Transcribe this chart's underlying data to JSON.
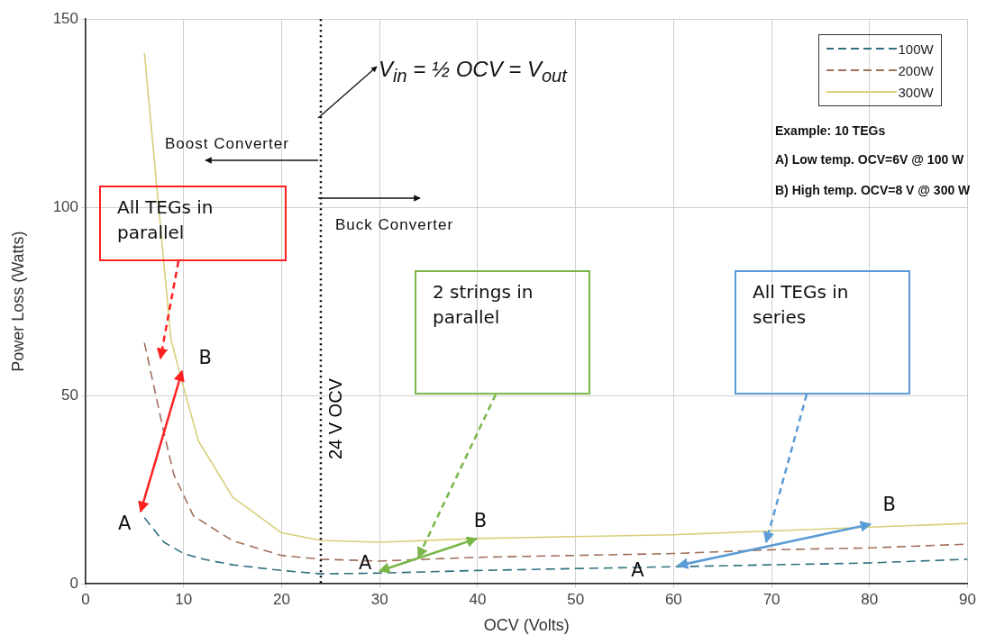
{
  "chart_data": {
    "type": "line",
    "xlabel": "OCV (Volts)",
    "ylabel": "Power Loss (Watts)",
    "xlim": [
      0,
      90
    ],
    "xticks": [
      0,
      10,
      20,
      30,
      40,
      50,
      60,
      70,
      80,
      90
    ],
    "ylim": [
      0,
      150
    ],
    "yticks": [
      0,
      50,
      100,
      150
    ],
    "grid": true,
    "legend": "top right",
    "series": [
      {
        "name": "100W",
        "color": "#2f6f7f",
        "line_style": "dashed",
        "x": [
          6,
          8,
          10,
          12,
          15,
          20,
          24,
          30,
          40,
          50,
          60,
          70,
          80,
          90
        ],
        "values": [
          17.5,
          11,
          8,
          6.5,
          5,
          3.5,
          2.6,
          2.8,
          3.5,
          4,
          4.5,
          5,
          5.5,
          6.5
        ]
      },
      {
        "name": "200W",
        "color": "#a0705a",
        "line_style": "dashed",
        "x": [
          6,
          8,
          9,
          11,
          15,
          20,
          24,
          30,
          40,
          50,
          60,
          70,
          80,
          90
        ],
        "values": [
          64,
          40,
          29,
          18,
          11.4,
          7.5,
          6.5,
          6,
          7,
          7.5,
          8,
          9,
          9.5,
          10.5
        ]
      },
      {
        "name": "300W",
        "color": "#d8cf7a",
        "line_style": "solid",
        "x": [
          6,
          8.7,
          9.8,
          11.5,
          15,
          20,
          24,
          30,
          40,
          50,
          60,
          70,
          80,
          90
        ],
        "values": [
          141,
          65,
          54,
          38,
          23,
          13.5,
          11.5,
          11,
          12,
          12.5,
          13,
          14,
          15,
          16
        ]
      }
    ],
    "ref_lines": [
      {
        "axis": "x",
        "value": 24,
        "label": "24 V OCV",
        "color": "#000000",
        "line_style": "dotted"
      }
    ],
    "annotations": [
      "V$_{in}$ = ½ OCV = V$_{out}$",
      "Boost Converter",
      "Buck Converter",
      "Example: 10 TEGs",
      "A) Low temp. OCV=6V @ 100 W",
      "B) High temp. OCV=8 V @ 300 W",
      "All TEGs in parallel",
      "2 strings in parallel",
      "All TEGs in series",
      {
        "text": "A",
        "x": 6,
        "y": 17.5
      },
      {
        "text": "B",
        "x": 10,
        "y": 54
      },
      {
        "text": "A",
        "x": 30,
        "y": 2.8
      },
      {
        "text": "B",
        "x": 40,
        "y": 12
      },
      {
        "text": "A",
        "x": 60,
        "y": 4.5
      },
      {
        "text": "B",
        "x": 80,
        "y": 15
      }
    ]
  }
}
